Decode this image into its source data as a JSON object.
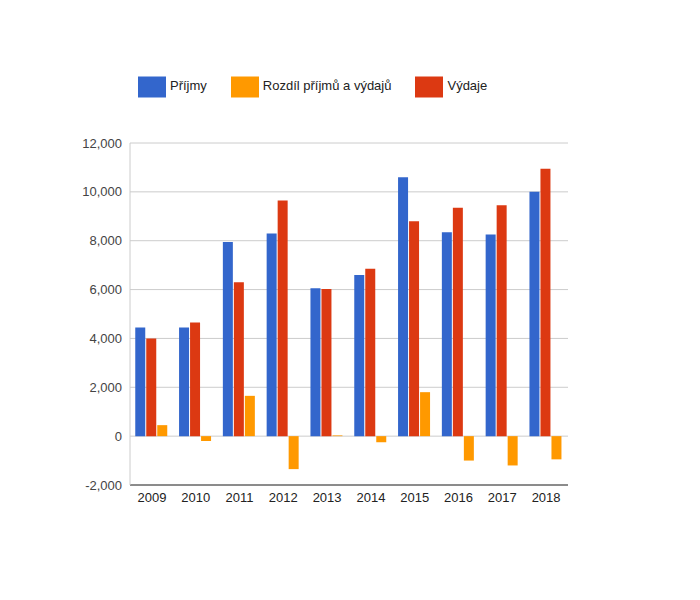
{
  "chart_data": {
    "type": "bar",
    "categories": [
      "2009",
      "2010",
      "2011",
      "2012",
      "2013",
      "2014",
      "2015",
      "2016",
      "2017",
      "2018"
    ],
    "series": [
      {
        "name": "Příjmy",
        "color": "#3366cc",
        "values": [
          4450,
          4450,
          7950,
          8300,
          6050,
          6600,
          10600,
          8350,
          8250,
          10000
        ]
      },
      {
        "name": "Výdaje",
        "color": "#dc3912",
        "values": [
          4000,
          4650,
          6300,
          9650,
          6020,
          6850,
          8800,
          9350,
          9450,
          10950
        ]
      },
      {
        "name": "Rozdíl příjmů a výdajů",
        "color": "#ff9900",
        "values": [
          450,
          -200,
          1650,
          -1350,
          30,
          -250,
          1800,
          -1000,
          -1200,
          -950
        ]
      }
    ],
    "ylim": [
      -2000,
      12000
    ],
    "yticks": [
      {
        "value": -2000,
        "label": "-2,000"
      },
      0,
      {
        "value": 2000,
        "label": "2,000"
      },
      {
        "value": 4000,
        "label": "4,000"
      },
      {
        "value": 6000,
        "label": "6,000"
      },
      {
        "value": 8000,
        "label": "8,000"
      },
      {
        "value": 10000,
        "label": "10,000"
      },
      {
        "value": 12000,
        "label": "12,000"
      }
    ],
    "grid": true,
    "legend": "top"
  }
}
